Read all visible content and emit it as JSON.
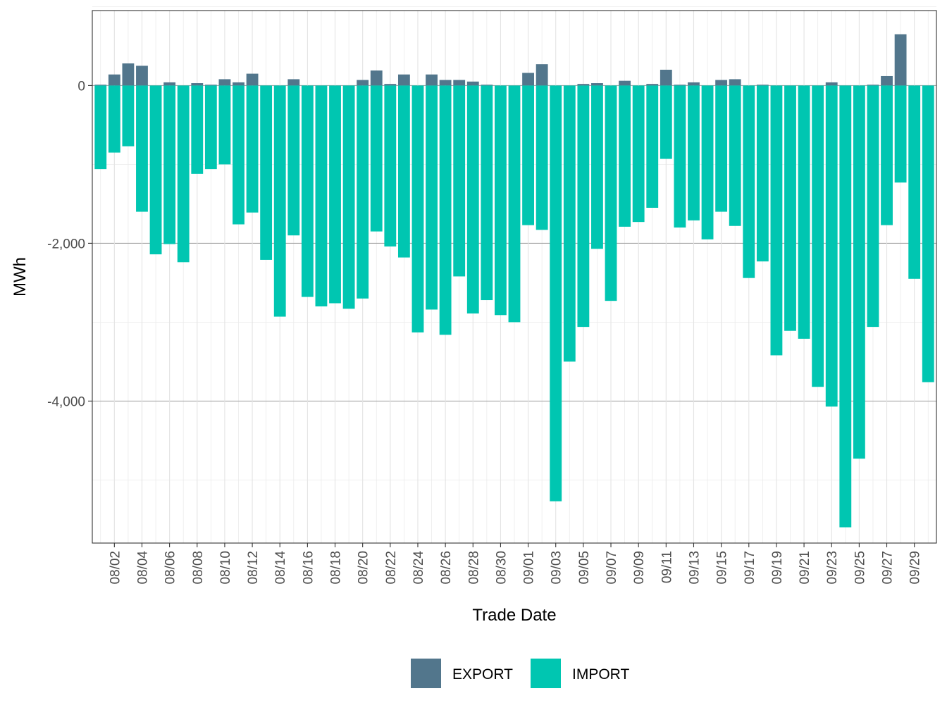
{
  "chart_data": {
    "type": "bar",
    "stacked": true,
    "title": "",
    "xlabel": "Trade Date",
    "ylabel": "MWh",
    "ylim": [
      -5800,
      950
    ],
    "y_ticks": [
      0,
      -2000,
      -4000
    ],
    "y_tick_labels": [
      "0",
      "-2,000",
      "-4,000"
    ],
    "x_tick_labels": [
      "08/02",
      "08/04",
      "08/06",
      "08/08",
      "08/10",
      "08/12",
      "08/14",
      "08/16",
      "08/18",
      "08/20",
      "08/22",
      "08/24",
      "08/26",
      "08/28",
      "08/30",
      "09/01",
      "09/03",
      "09/05",
      "09/07",
      "09/09",
      "09/11",
      "09/13",
      "09/15",
      "09/17",
      "09/19",
      "09/21",
      "09/23",
      "09/25",
      "09/27",
      "09/29"
    ],
    "categories": [
      "08/01",
      "08/02",
      "08/03",
      "08/04",
      "08/05",
      "08/06",
      "08/07",
      "08/08",
      "08/09",
      "08/10",
      "08/11",
      "08/12",
      "08/13",
      "08/14",
      "08/15",
      "08/16",
      "08/17",
      "08/18",
      "08/19",
      "08/20",
      "08/21",
      "08/22",
      "08/23",
      "08/24",
      "08/25",
      "08/26",
      "08/27",
      "08/28",
      "08/29",
      "08/30",
      "08/31",
      "09/01",
      "09/02",
      "09/03",
      "09/04",
      "09/05",
      "09/06",
      "09/07",
      "09/08",
      "09/09",
      "09/10",
      "09/11",
      "09/12",
      "09/13",
      "09/14",
      "09/15",
      "09/16",
      "09/17",
      "09/18",
      "09/19",
      "09/20",
      "09/21",
      "09/22",
      "09/23",
      "09/24",
      "09/25",
      "09/26",
      "09/27",
      "09/28",
      "09/29",
      "09/30"
    ],
    "series": [
      {
        "name": "EXPORT",
        "color": "#52768c",
        "values": [
          10,
          140,
          280,
          250,
          0,
          40,
          0,
          30,
          10,
          80,
          40,
          150,
          0,
          0,
          80,
          0,
          0,
          0,
          0,
          70,
          190,
          20,
          140,
          0,
          140,
          70,
          70,
          50,
          10,
          0,
          0,
          160,
          270,
          0,
          0,
          20,
          30,
          0,
          60,
          0,
          20,
          200,
          10,
          40,
          0,
          70,
          80,
          0,
          10,
          0,
          0,
          0,
          0,
          40,
          0,
          0,
          10,
          120,
          650,
          0,
          0
        ]
      },
      {
        "name": "IMPORT",
        "color": "#00c6b1",
        "values": [
          -1060,
          -850,
          -770,
          -1600,
          -2140,
          -2010,
          -2240,
          -1120,
          -1060,
          -1000,
          -1760,
          -1610,
          -2210,
          -2930,
          -1900,
          -2680,
          -2800,
          -2760,
          -2830,
          -2700,
          -1850,
          -2040,
          -2180,
          -3130,
          -2840,
          -3160,
          -2420,
          -2890,
          -2720,
          -2910,
          -3000,
          -1770,
          -1830,
          -5270,
          -3500,
          -3060,
          -2070,
          -2730,
          -1790,
          -1730,
          -1550,
          -930,
          -1800,
          -1710,
          -1950,
          -1600,
          -1780,
          -2440,
          -2230,
          -3420,
          -3110,
          -3210,
          -3820,
          -4070,
          -5600,
          -4730,
          -3060,
          -1770,
          -1230,
          -2450,
          -3760
        ]
      }
    ],
    "legend": {
      "position": "bottom",
      "entries": [
        "EXPORT",
        "IMPORT"
      ]
    },
    "grid": true
  }
}
